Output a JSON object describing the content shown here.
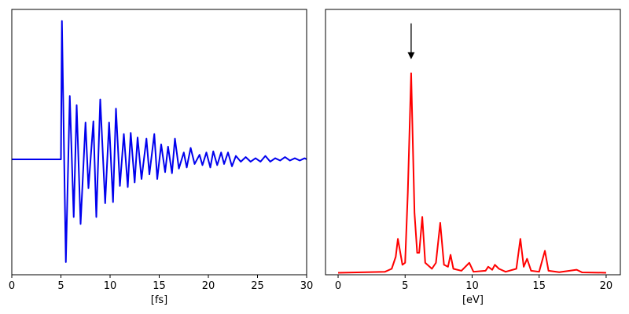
{
  "chart_data": [
    {
      "type": "line",
      "xlabel": "[fs]",
      "xlim": [
        0,
        30
      ],
      "ylim": [
        -1,
        1.3
      ],
      "xticks": [
        0,
        5,
        10,
        15,
        20,
        25,
        30
      ],
      "x": [
        0,
        5.0,
        5.1,
        5.5,
        5.9,
        6.3,
        6.6,
        7.0,
        7.5,
        7.8,
        8.3,
        8.6,
        9.0,
        9.5,
        9.9,
        10.3,
        10.6,
        11.0,
        11.4,
        11.8,
        12.1,
        12.5,
        12.8,
        13.2,
        13.7,
        14.0,
        14.5,
        14.8,
        15.2,
        15.6,
        15.9,
        16.3,
        16.6,
        17.0,
        17.5,
        17.8,
        18.2,
        18.6,
        19.1,
        19.4,
        19.8,
        20.2,
        20.5,
        20.9,
        21.3,
        21.6,
        22.0,
        22.4,
        22.8,
        23.3,
        23.8,
        24.3,
        24.8,
        25.3,
        25.8,
        26.3,
        26.8,
        27.3,
        27.8,
        28.3,
        28.8,
        29.3,
        29.8,
        30
      ],
      "series": [
        {
          "color": "#0000ee",
          "values": [
            0,
            0,
            1.2,
            -0.89,
            0.55,
            -0.5,
            0.47,
            -0.56,
            0.32,
            -0.25,
            0.33,
            -0.5,
            0.52,
            -0.38,
            0.32,
            -0.37,
            0.44,
            -0.23,
            0.22,
            -0.24,
            0.23,
            -0.2,
            0.19,
            -0.17,
            0.18,
            -0.13,
            0.22,
            -0.17,
            0.13,
            -0.11,
            0.11,
            -0.12,
            0.18,
            -0.08,
            0.06,
            -0.07,
            0.1,
            -0.04,
            0.04,
            -0.05,
            0.06,
            -0.07,
            0.07,
            -0.05,
            0.06,
            -0.04,
            0.06,
            -0.06,
            0.03,
            -0.02,
            0.02,
            -0.02,
            0.01,
            -0.02,
            0.03,
            -0.02,
            0.01,
            -0.01,
            0.02,
            -0.01,
            0.01,
            -0.01,
            0.01,
            0
          ]
        }
      ]
    },
    {
      "type": "line",
      "xlabel": "[eV]",
      "xlim": [
        -0.94,
        21.06
      ],
      "ylim": [
        -0.01,
        1.32
      ],
      "xticks": [
        0,
        5,
        10,
        15,
        20
      ],
      "x": [
        0,
        3.5,
        4.0,
        4.3,
        4.46,
        4.8,
        5.0,
        5.2,
        5.45,
        5.7,
        5.9,
        6.05,
        6.28,
        6.5,
        7.0,
        7.3,
        7.62,
        7.9,
        8.2,
        8.39,
        8.6,
        9.2,
        9.79,
        10.1,
        11.0,
        11.2,
        11.5,
        11.7,
        12.0,
        12.5,
        13.3,
        13.6,
        13.85,
        14.1,
        14.4,
        15.0,
        15.43,
        15.7,
        16.5,
        17.8,
        18.2,
        20
      ],
      "series": [
        {
          "color": "#ff0000",
          "values": [
            0,
            0.005,
            0.02,
            0.08,
            0.17,
            0.04,
            0.05,
            0.4,
            1.0,
            0.3,
            0.1,
            0.1,
            0.28,
            0.05,
            0.02,
            0.05,
            0.25,
            0.04,
            0.03,
            0.09,
            0.02,
            0.01,
            0.05,
            0.005,
            0.01,
            0.03,
            0.015,
            0.04,
            0.02,
            0.005,
            0.02,
            0.17,
            0.03,
            0.07,
            0.01,
            0.005,
            0.11,
            0.01,
            0.003,
            0.015,
            0.002,
            0
          ]
        }
      ],
      "arrow": {
        "x": 5.45,
        "y": [
          1.25,
          1.07
        ]
      }
    }
  ]
}
